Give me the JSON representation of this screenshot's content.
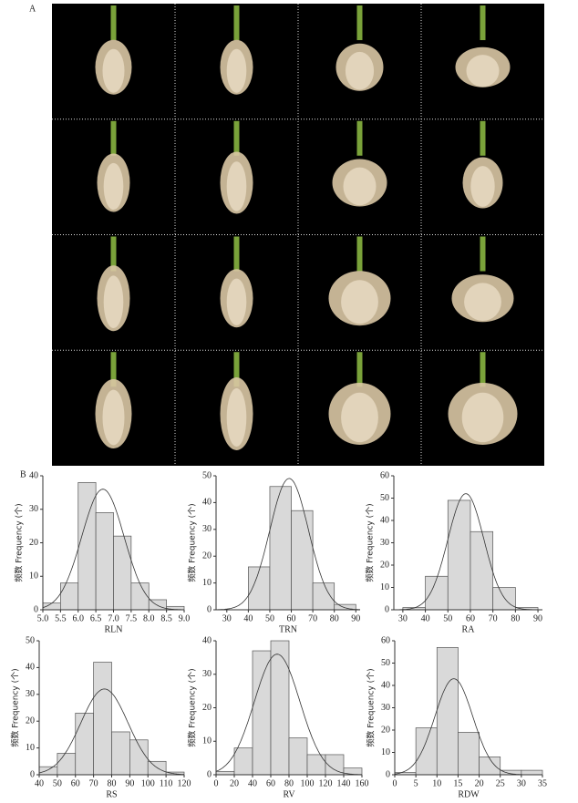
{
  "panel_labels": [
    "A",
    "B"
  ],
  "chart_data": [
    {
      "type": "histogram",
      "xlabel": "RLN",
      "ylabel": "频数 Frequency (个)",
      "bins": [
        5,
        5.5,
        6,
        6.5,
        7,
        7.5,
        8,
        8.5,
        9
      ],
      "values": [
        2,
        8,
        38,
        29,
        22,
        8,
        3,
        1
      ],
      "xlim": [
        5,
        9
      ],
      "xticks": [
        {
          "value": 5,
          "label": "5.0"
        },
        5.5,
        {
          "value": 6,
          "label": "6.0"
        },
        6.5,
        {
          "value": 7,
          "label": "7.0"
        },
        7.5,
        {
          "value": 8,
          "label": "8.0"
        },
        8.5,
        {
          "value": 9,
          "label": "9.0"
        }
      ],
      "ylim": [
        0,
        40
      ],
      "yticks": [
        0,
        10,
        20,
        30,
        40
      ],
      "color": "#d9d9d9",
      "normal_fit": {
        "mean": 6.7,
        "sd": 0.6,
        "peak": 36
      }
    },
    {
      "type": "histogram",
      "xlabel": "TRN",
      "ylabel": "频数 Frequency (个)",
      "bins": [
        30,
        40,
        50,
        60,
        70,
        80,
        90
      ],
      "values": [
        0,
        16,
        46,
        37,
        10,
        2
      ],
      "xlim": [
        25,
        92
      ],
      "xticks": [
        30,
        40,
        50,
        60,
        70,
        80,
        90
      ],
      "ylim": [
        0,
        50
      ],
      "yticks": [
        0,
        10,
        20,
        30,
        40,
        50
      ],
      "color": "#d9d9d9",
      "normal_fit": {
        "mean": 59,
        "sd": 9,
        "peak": 49
      }
    },
    {
      "type": "histogram",
      "xlabel": "RA",
      "ylabel": "频数 Frequency (个)",
      "bins": [
        30,
        40,
        50,
        60,
        70,
        80,
        90
      ],
      "values": [
        1,
        15,
        49,
        35,
        10,
        1
      ],
      "xlim": [
        26,
        92
      ],
      "xticks": [
        30,
        40,
        50,
        60,
        70,
        80,
        90
      ],
      "ylim": [
        0,
        60
      ],
      "yticks": [
        0,
        10,
        20,
        30,
        40,
        50,
        60
      ],
      "color": "#d9d9d9",
      "normal_fit": {
        "mean": 58,
        "sd": 8,
        "peak": 52
      }
    },
    {
      "type": "histogram",
      "xlabel": "RS",
      "ylabel": "频数 Frequency (个)",
      "bins": [
        40,
        50,
        60,
        70,
        80,
        90,
        100,
        110,
        120
      ],
      "values": [
        3,
        8,
        23,
        42,
        16,
        13,
        5,
        1
      ],
      "xlim": [
        40,
        120
      ],
      "xticks": [
        40,
        50,
        60,
        70,
        80,
        90,
        100,
        110,
        120
      ],
      "ylim": [
        0,
        50
      ],
      "yticks": [
        0,
        10,
        20,
        30,
        40,
        50
      ],
      "color": "#d9d9d9",
      "normal_fit": {
        "mean": 76,
        "sd": 13,
        "peak": 32
      }
    },
    {
      "type": "histogram",
      "xlabel": "RV",
      "ylabel": "频数 Frequency (个)",
      "bins": [
        0,
        20,
        40,
        60,
        80,
        100,
        120,
        140,
        160
      ],
      "values": [
        1,
        8,
        37,
        40,
        11,
        6,
        6,
        2
      ],
      "xlim": [
        0,
        160
      ],
      "xticks": [
        0,
        20,
        40,
        60,
        80,
        100,
        120,
        140,
        160
      ],
      "ylim": [
        0,
        40
      ],
      "yticks": [
        0,
        10,
        20,
        30,
        40
      ],
      "color": "#d9d9d9",
      "normal_fit": {
        "mean": 67,
        "sd": 25,
        "peak": 36
      }
    },
    {
      "type": "histogram",
      "xlabel": "RDW",
      "ylabel": "频数 Frequency (个)",
      "bins": [
        0,
        5,
        10,
        15,
        20,
        25,
        30,
        35
      ],
      "values": [
        1,
        21,
        57,
        19,
        8,
        2,
        2
      ],
      "xlim": [
        0,
        35
      ],
      "xticks": [
        0,
        5,
        10,
        15,
        20,
        25,
        30,
        35
      ],
      "ylim": [
        0,
        60
      ],
      "yticks": [
        0,
        10,
        20,
        30,
        40,
        50,
        60
      ],
      "color": "#d9d9d9",
      "normal_fit": {
        "mean": 14,
        "sd": 4.5,
        "peak": 43
      }
    }
  ]
}
